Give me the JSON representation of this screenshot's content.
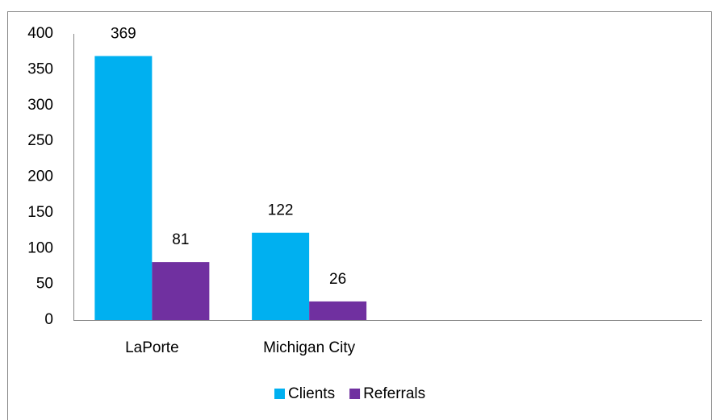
{
  "chart_data": {
    "type": "bar",
    "categories": [
      "LaPorte",
      "Michigan City",
      null,
      null
    ],
    "series": [
      {
        "name": "Clients",
        "color": "#00b0f0",
        "values": [
          369,
          122,
          null,
          null
        ]
      },
      {
        "name": "Referrals",
        "color": "#7030a0",
        "values": [
          81,
          26,
          null,
          null
        ]
      }
    ],
    "ylim": [
      0,
      400
    ],
    "yticks": [
      0,
      50,
      100,
      150,
      200,
      250,
      300,
      350,
      400
    ],
    "grid": false,
    "legend": "bottom",
    "data_labels": true
  }
}
